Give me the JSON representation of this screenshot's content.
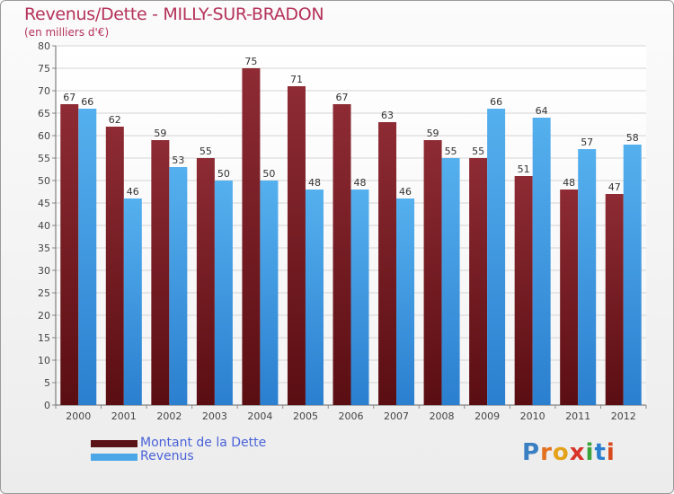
{
  "title": "Revenus/Dette - MILLY-SUR-BRADON",
  "subtitle": "(en milliers d'€)",
  "logo": "Proxiti",
  "colors": {
    "dette": "#7a1f25",
    "revenus": "#4aa6e6",
    "title": "#b5325a",
    "legend_text": "#4a62d8"
  },
  "chart_data": {
    "type": "bar",
    "categories": [
      "2000",
      "2001",
      "2002",
      "2003",
      "2004",
      "2005",
      "2006",
      "2007",
      "2008",
      "2009",
      "2010",
      "2011",
      "2012"
    ],
    "series": [
      {
        "name": "Montant de la Dette",
        "values": [
          67,
          62,
          59,
          55,
          75,
          71,
          67,
          63,
          59,
          55,
          51,
          48,
          47
        ]
      },
      {
        "name": "Revenus",
        "values": [
          66,
          46,
          53,
          50,
          50,
          48,
          48,
          46,
          55,
          66,
          64,
          57,
          58
        ]
      }
    ],
    "ylim": [
      0,
      80
    ],
    "yticks": [
      0,
      5,
      10,
      15,
      20,
      25,
      30,
      35,
      40,
      45,
      50,
      55,
      60,
      65,
      70,
      75,
      80
    ],
    "grid": true,
    "legend": "bottom-left"
  }
}
